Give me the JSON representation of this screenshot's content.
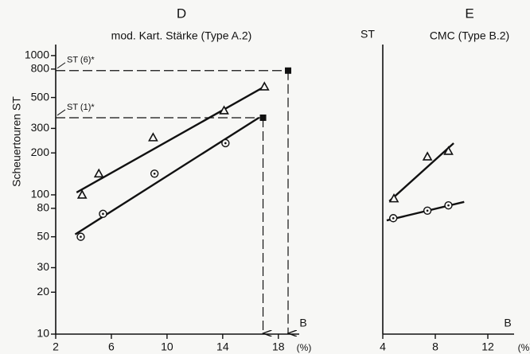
{
  "chart_data": [
    {
      "type": "scatter",
      "title": "D",
      "subtitle": "mod. Kart. Stärke (Type A.2)",
      "ylabel": "Scheuertouren ST",
      "xlabel": "(%)",
      "axis_letter": "B",
      "log_y": true,
      "ylim": [
        10,
        1200
      ],
      "yticks": [
        10,
        20,
        30,
        50,
        80,
        100,
        200,
        300,
        500,
        800,
        1000
      ],
      "xlim": [
        2,
        19.5
      ],
      "xticks": [
        2,
        6,
        10,
        14,
        18
      ],
      "color": "#111111",
      "series": [
        {
          "marker": "triangle",
          "x": [
            3.9,
            5.1,
            9.0,
            14.1,
            17.0
          ],
          "values": [
            100,
            142,
            258,
            403,
            598
          ]
        },
        {
          "marker": "circle",
          "x": [
            3.8,
            5.4,
            9.1,
            14.2
          ],
          "values": [
            50,
            73,
            142,
            235
          ]
        }
      ],
      "fit_lines": [
        {
          "x": [
            3.5,
            17.0
          ],
          "values": [
            104,
            598
          ]
        },
        {
          "x": [
            3.4,
            16.6
          ],
          "values": [
            52,
            358
          ]
        }
      ],
      "marked_points": [
        {
          "label": "ST (6)*",
          "x": 18.7,
          "value": 780
        },
        {
          "label": "ST (1)*",
          "x": 16.9,
          "value": 358
        }
      ]
    },
    {
      "type": "scatter",
      "title": "E",
      "subtitle": "CMC  (Type B.2)",
      "ylabel": "ST",
      "xlabel": "(%)",
      "axis_letter": "B",
      "log_y": true,
      "ylim": [
        10,
        1200
      ],
      "yticks": [],
      "xlim": [
        4,
        14
      ],
      "xticks": [
        4,
        8,
        12
      ],
      "color": "#111111",
      "series": [
        {
          "marker": "triangle",
          "x": [
            4.85,
            7.4,
            9.0
          ],
          "values": [
            94,
            188,
            206
          ]
        },
        {
          "marker": "circle",
          "x": [
            4.8,
            7.4,
            9.0
          ],
          "values": [
            68,
            77,
            84
          ]
        }
      ],
      "fit_lines": [
        {
          "x": [
            4.5,
            9.4
          ],
          "values": [
            90,
            235
          ]
        },
        {
          "x": [
            4.3,
            10.2
          ],
          "values": [
            65.5,
            89
          ]
        }
      ],
      "marked_points": []
    }
  ]
}
